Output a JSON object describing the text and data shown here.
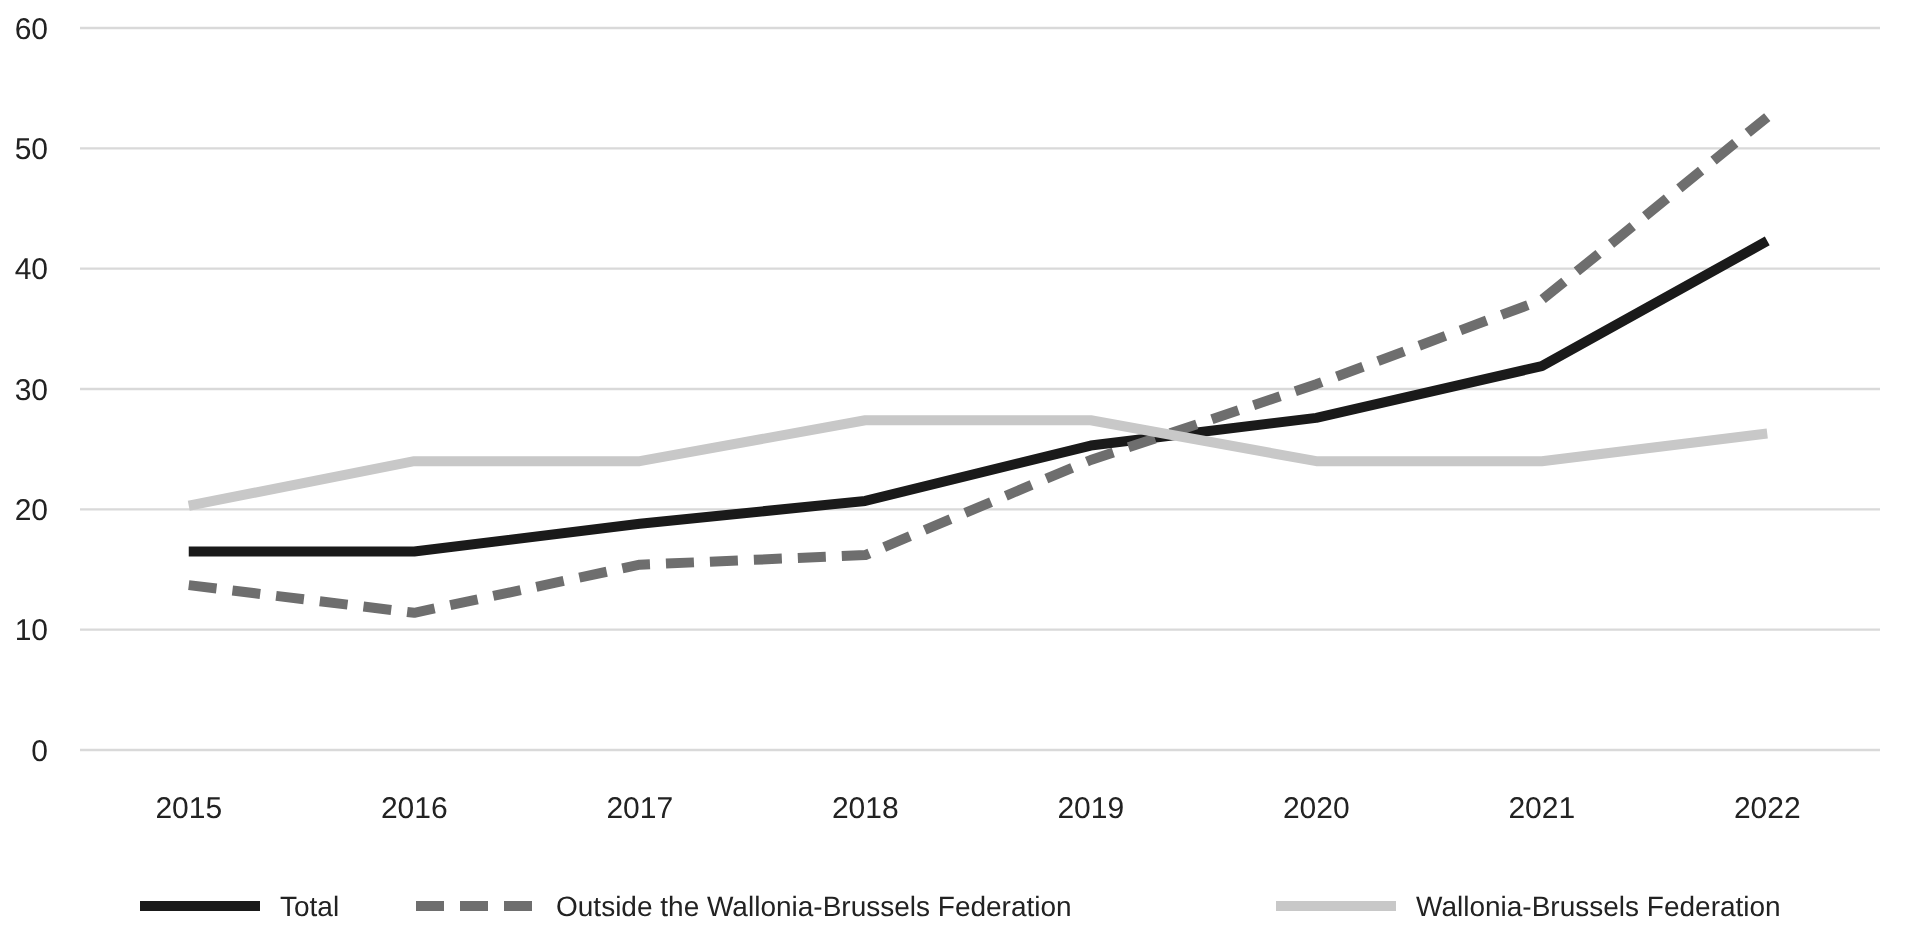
{
  "chart_data": {
    "type": "line",
    "categories": [
      "2015",
      "2016",
      "2017",
      "2018",
      "2019",
      "2020",
      "2021",
      "2022"
    ],
    "series": [
      {
        "name": "Total",
        "color": "#1a1a1a",
        "line_style": "solid",
        "values": [
          16.5,
          16.5,
          18.8,
          20.7,
          25.3,
          27.6,
          31.9,
          42.3
        ]
      },
      {
        "name": "Outside the Wallonia-Brussels Federation",
        "color": "#6e6e6e",
        "line_style": "dashed",
        "values": [
          13.7,
          11.4,
          15.4,
          16.2,
          24.1,
          30.4,
          37.4,
          52.6
        ]
      },
      {
        "name": "Wallonia-Brussels Federation",
        "color": "#c8c8c8",
        "line_style": "solid",
        "values": [
          20.3,
          24.0,
          24.0,
          27.4,
          27.4,
          24.0,
          24.0,
          26.3
        ]
      }
    ],
    "ylim": [
      0,
      60
    ],
    "yticks": [
      0,
      10,
      20,
      30,
      40,
      50,
      60
    ],
    "grid": "y",
    "legend": "bottom"
  }
}
